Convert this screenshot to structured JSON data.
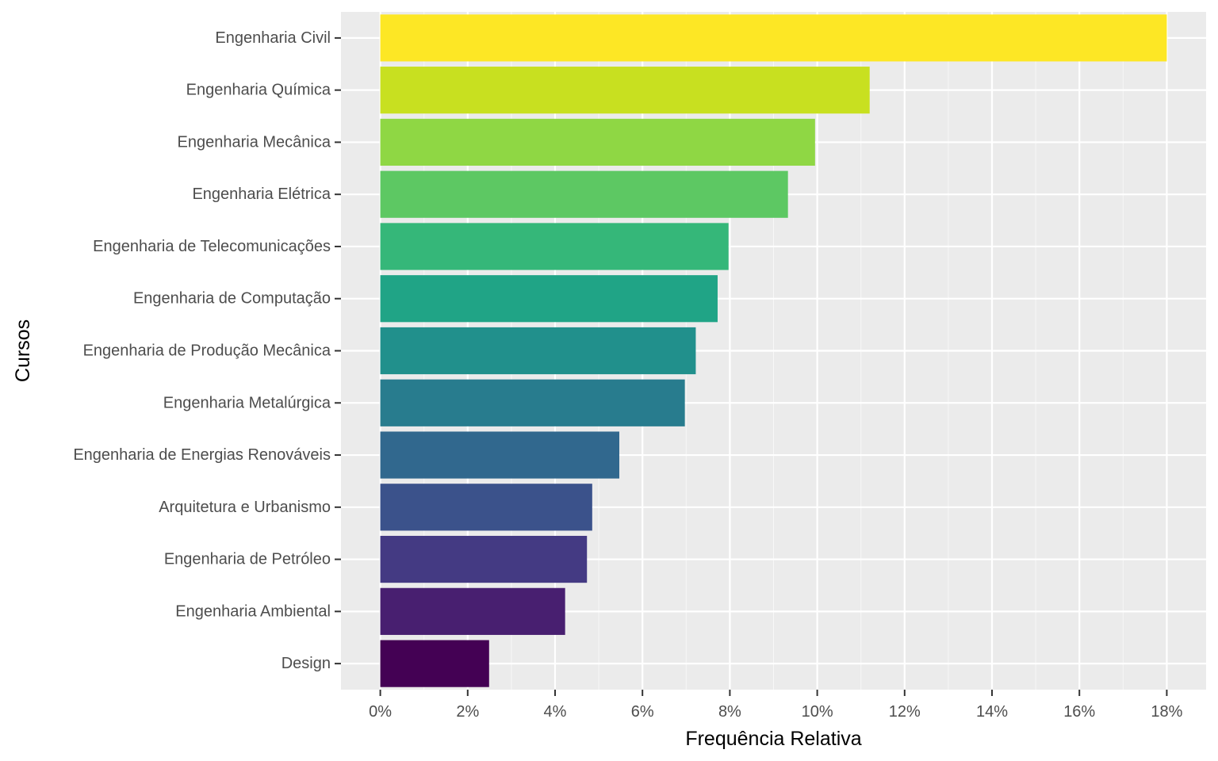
{
  "chart_data": {
    "type": "bar",
    "orientation": "horizontal",
    "title": "",
    "xlabel": "Frequência Relativa",
    "ylabel": "Cursos",
    "xlim": [
      -0.9,
      18.9
    ],
    "x_ticks": [
      0,
      2,
      4,
      6,
      8,
      10,
      12,
      14,
      16,
      18
    ],
    "x_tick_labels": [
      "0%",
      "2%",
      "4%",
      "6%",
      "8%",
      "10%",
      "12%",
      "14%",
      "16%",
      "18%"
    ],
    "grid": true,
    "legend": "none",
    "categories": [
      "Engenharia Civil",
      "Engenharia Química",
      "Engenharia Mecânica",
      "Engenharia Elétrica",
      "Engenharia de Telecomunicações",
      "Engenharia de Computação",
      "Engenharia de Produção Mecânica",
      "Engenharia Metalúrgica",
      "Engenharia de Energias Renováveis",
      "Arquitetura e Urbanismo",
      "Engenharia de Petróleo",
      "Engenharia Ambiental",
      "Design"
    ],
    "values": [
      18.0,
      11.2,
      9.95,
      9.33,
      7.97,
      7.72,
      7.22,
      6.97,
      5.47,
      4.85,
      4.73,
      4.23,
      2.49
    ],
    "colors": [
      "#FDE725",
      "#C8E020",
      "#8FD744",
      "#5DC863",
      "#35B779",
      "#20A486",
      "#21908C",
      "#287C8E",
      "#31688E",
      "#3B528B",
      "#443A83",
      "#481F70",
      "#440154"
    ]
  },
  "colors": {
    "panel_background": "#EBEBEB",
    "grid_major": "#FFFFFF",
    "tick": "#333333"
  }
}
